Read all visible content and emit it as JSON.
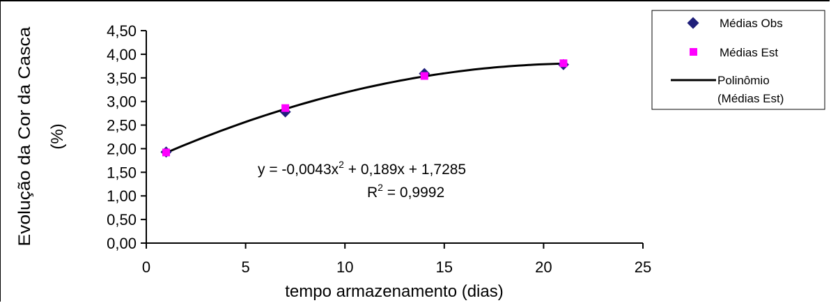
{
  "chart_data": {
    "type": "scatter",
    "title": "",
    "xlabel": "tempo armazenamento (dias)",
    "ylabel_line1": "Evolução da Cor da Casca",
    "ylabel_line2": "(%)",
    "xlim": [
      0,
      25
    ],
    "ylim": [
      0,
      4.5
    ],
    "x_ticks": [
      "0",
      "5",
      "10",
      "15",
      "20",
      "25"
    ],
    "y_ticks": [
      "0,00",
      "0,50",
      "1,00",
      "1,50",
      "2,00",
      "2,50",
      "3,00",
      "3,50",
      "4,00",
      "4,50"
    ],
    "grid": false,
    "legend_position": "top-right",
    "series": [
      {
        "name": "Médias Obs",
        "marker": "diamond",
        "color": "#1f1f7a",
        "x": [
          1,
          7,
          14,
          21
        ],
        "y": [
          1.93,
          2.78,
          3.59,
          3.78
        ]
      },
      {
        "name": "Médias Est",
        "marker": "square",
        "color": "#ff00ff",
        "x": [
          1,
          7,
          14,
          21
        ],
        "y": [
          1.92,
          2.86,
          3.54,
          3.81
        ]
      },
      {
        "name_line1": "Polinômio",
        "name_line2": "(Médias Est)",
        "marker": "line",
        "color": "#000000",
        "coefficients": {
          "a": -0.0043,
          "b": 0.189,
          "c": 1.7285
        },
        "x_range": [
          1,
          21
        ]
      }
    ],
    "annotations": {
      "equation_pre": "y = -0,0043x",
      "equation_exp": "2",
      "equation_post": " + 0,189x + 1,7285",
      "r2_pre": "R",
      "r2_exp": "2",
      "r2_post": " = 0,9992"
    }
  }
}
